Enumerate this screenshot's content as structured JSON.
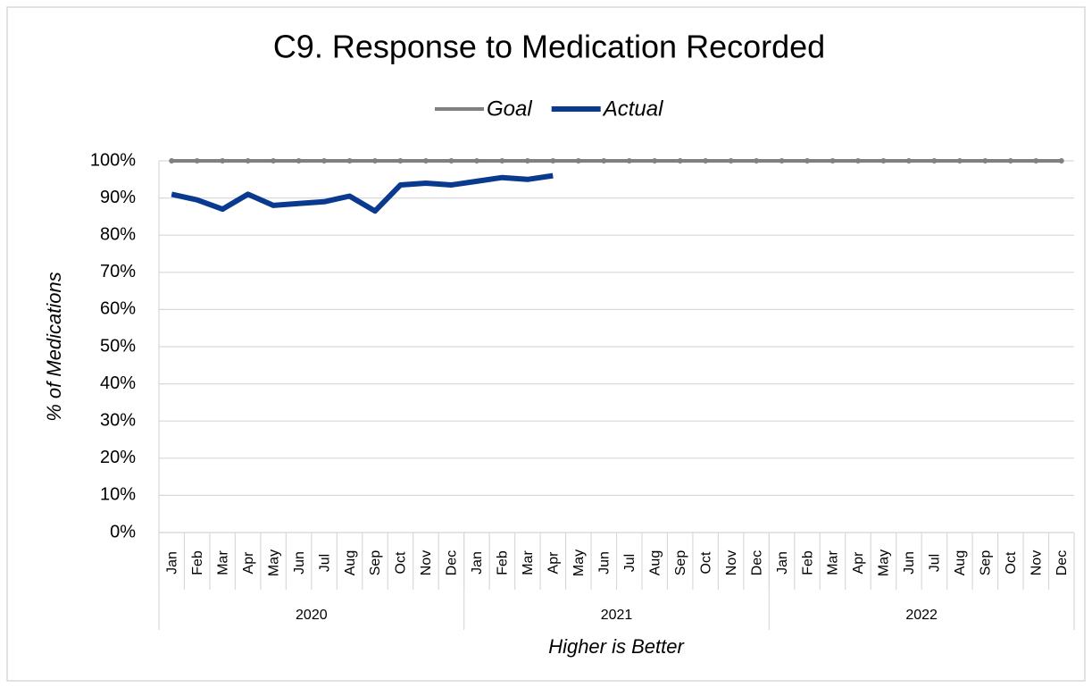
{
  "chart_data": {
    "type": "line",
    "title": "C9. Response to Medication Recorded",
    "y_label": "% of Medications",
    "x_label": "Higher is Better",
    "x_groups": [
      "2020",
      "2021",
      "2022"
    ],
    "categories": [
      "Jan",
      "Feb",
      "Mar",
      "Apr",
      "May",
      "Jun",
      "Jul",
      "Aug",
      "Sep",
      "Oct",
      "Nov",
      "Dec",
      "Jan",
      "Feb",
      "Mar",
      "Apr",
      "May",
      "Jun",
      "Jul",
      "Aug",
      "Sep",
      "Oct",
      "Nov",
      "Dec",
      "Jan",
      "Feb",
      "Mar",
      "Apr",
      "May",
      "Jun",
      "Jul",
      "Aug",
      "Sep",
      "Oct",
      "Nov",
      "Dec"
    ],
    "series": [
      {
        "name": "Goal",
        "color": "#808080",
        "values": [
          100,
          100,
          100,
          100,
          100,
          100,
          100,
          100,
          100,
          100,
          100,
          100,
          100,
          100,
          100,
          100,
          100,
          100,
          100,
          100,
          100,
          100,
          100,
          100,
          100,
          100,
          100,
          100,
          100,
          100,
          100,
          100,
          100,
          100,
          100,
          100
        ]
      },
      {
        "name": "Actual",
        "color": "#0a3a8f",
        "values": [
          91,
          89.5,
          87,
          91,
          88,
          88.5,
          89,
          90.5,
          86.5,
          93.5,
          94,
          93.5,
          94.5,
          95.5,
          95,
          96,
          null,
          null,
          null,
          null,
          null,
          null,
          null,
          null,
          null,
          null,
          null,
          null,
          null,
          null,
          null,
          null,
          null,
          null,
          null,
          null
        ]
      }
    ],
    "ylim": [
      0,
      100
    ],
    "yticks": [
      {
        "value": 0,
        "label": "0%"
      },
      {
        "value": 10,
        "label": "10%"
      },
      {
        "value": 20,
        "label": "20%"
      },
      {
        "value": 30,
        "label": "30%"
      },
      {
        "value": 40,
        "label": "40%"
      },
      {
        "value": 50,
        "label": "50%"
      },
      {
        "value": 60,
        "label": "60%"
      },
      {
        "value": 70,
        "label": "70%"
      },
      {
        "value": 80,
        "label": "80%"
      },
      {
        "value": 90,
        "label": "90%"
      },
      {
        "value": 100,
        "label": "100%"
      }
    ],
    "grid": true,
    "legend": "top"
  }
}
